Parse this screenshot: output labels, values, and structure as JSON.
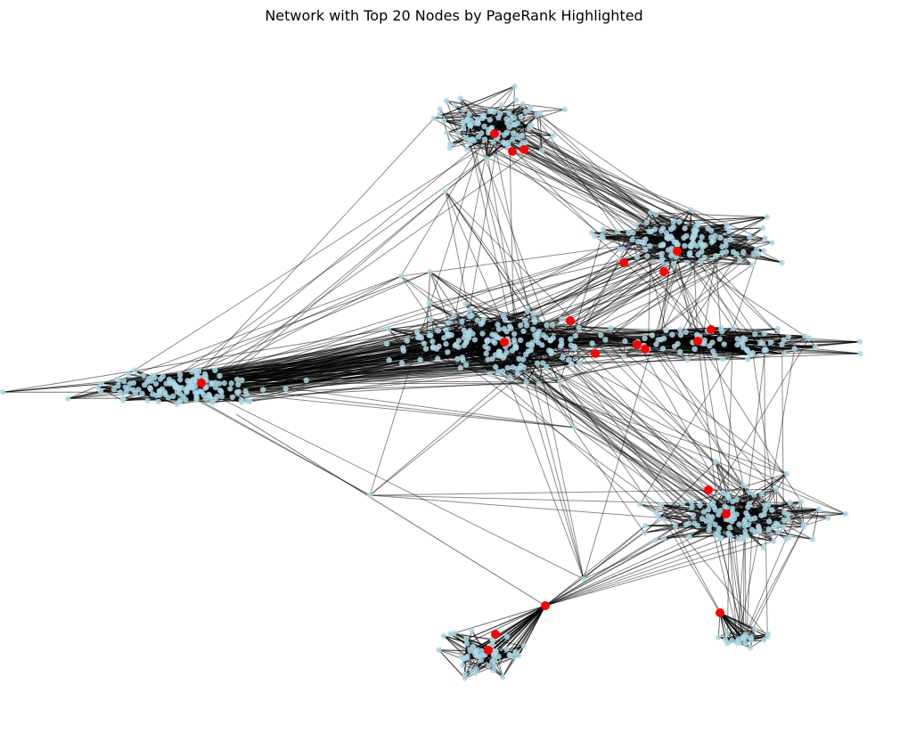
{
  "title": "Network with Top 20 Nodes by PageRank Highlighted",
  "colors": {
    "node": "#add8e6",
    "highlight": "#ff0000",
    "edge": "#000000",
    "background": "#ffffff"
  },
  "legend": "none",
  "axes": "off",
  "highlighted_count": 20
}
